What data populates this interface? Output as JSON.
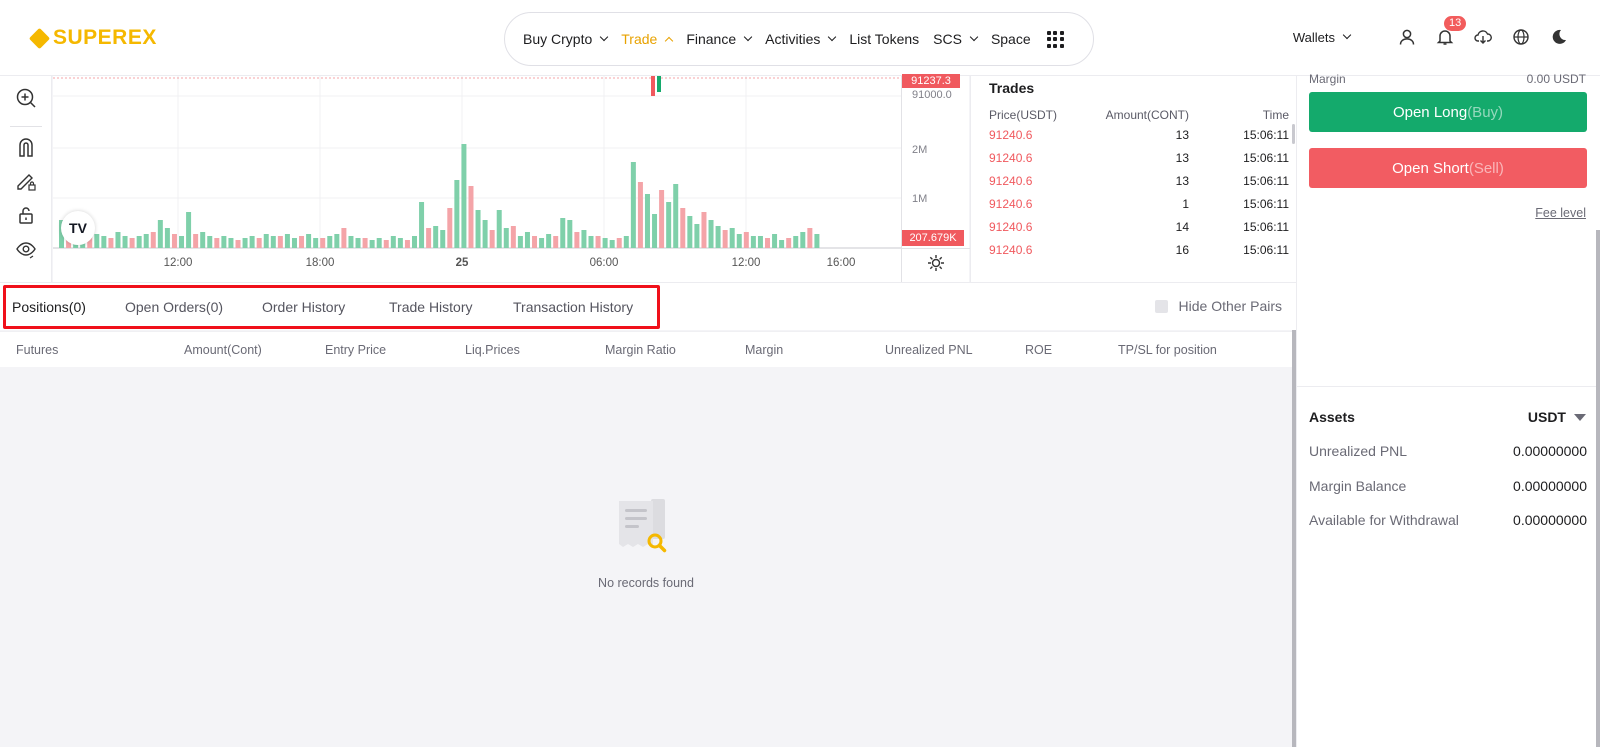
{
  "header": {
    "logo": "SUPEREX",
    "nav": [
      {
        "label": "Buy Crypto",
        "chevron": "down"
      },
      {
        "label": "Trade",
        "chevron": "up",
        "active": true
      },
      {
        "label": "Finance",
        "chevron": "down"
      },
      {
        "label": "Activities",
        "chevron": "down"
      },
      {
        "label": "List Tokens"
      },
      {
        "label": "SCS",
        "chevron": "down"
      },
      {
        "label": "Space"
      }
    ],
    "wallets": "Wallets",
    "notification_count": "13",
    "icons": [
      "user-icon",
      "bell-icon",
      "download-icon",
      "globe-icon",
      "moon-icon"
    ]
  },
  "chart": {
    "price_last": "91237.3",
    "price_tick": "91000.0",
    "volume_ticks": [
      "2M",
      "1M"
    ],
    "volume_last": "207.679K",
    "time_ticks": [
      "12:00",
      "18:00",
      "25",
      "06:00",
      "12:00",
      "16:00"
    ],
    "logo": "TV",
    "colors": {
      "up": "#7fd0aa",
      "down": "#f4a4a8"
    }
  },
  "trades": {
    "title": "Trades",
    "headers": [
      "Price(USDT)",
      "Amount(CONT)",
      "Time"
    ],
    "rows": [
      [
        "91240.6",
        "13",
        "15:06:11"
      ],
      [
        "91240.6",
        "13",
        "15:06:11"
      ],
      [
        "91240.6",
        "13",
        "15:06:11"
      ],
      [
        "91240.6",
        "1",
        "15:06:11"
      ],
      [
        "91240.6",
        "14",
        "15:06:11"
      ],
      [
        "91240.6",
        "16",
        "15:06:11"
      ]
    ]
  },
  "order": {
    "margin_label": "Margin",
    "margin_value": "0.00 USDT",
    "open_long": "Open Long",
    "open_long_sub": "(Buy)",
    "open_short": "Open Short",
    "open_short_sub": "(Sell)",
    "fee_level": "Fee level"
  },
  "assets": {
    "title": "Assets",
    "currency": "USDT",
    "rows": [
      {
        "label": "Unrealized PNL",
        "value": "0.00000000"
      },
      {
        "label": "Margin Balance",
        "value": "0.00000000"
      },
      {
        "label": "Available for Withdrawal",
        "value": "0.00000000"
      }
    ]
  },
  "tabs": {
    "items": [
      "Positions(0)",
      "Open Orders(0)",
      "Order History",
      "Trade History",
      "Transaction History"
    ],
    "hide_other_pairs": "Hide Other Pairs"
  },
  "columns": [
    "Futures",
    "Amount(Cont)",
    "Entry Price",
    "Liq.Prices",
    "Margin Ratio",
    "Margin",
    "Unrealized PNL",
    "ROE",
    "TP/SL for position"
  ],
  "empty": {
    "text": "No records found"
  }
}
